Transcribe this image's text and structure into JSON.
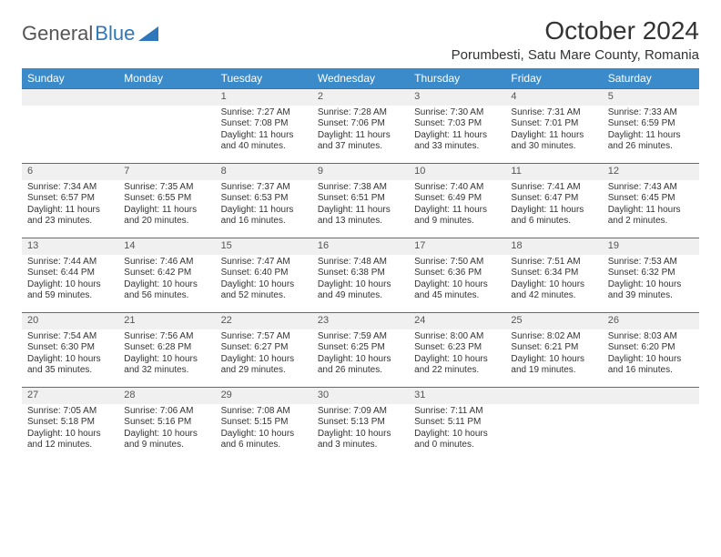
{
  "brand": {
    "part1": "General",
    "part2": "Blue"
  },
  "title": "October 2024",
  "location": "Porumbesti, Satu Mare County, Romania",
  "weekdays": [
    "Sunday",
    "Monday",
    "Tuesday",
    "Wednesday",
    "Thursday",
    "Friday",
    "Saturday"
  ],
  "colors": {
    "header_bg": "#3b8bca",
    "border": "#2f77bb",
    "daynum_bg": "#f0f0f0",
    "text": "#333333"
  },
  "leading_blanks": 2,
  "days": [
    {
      "n": "1",
      "sunrise": "Sunrise: 7:27 AM",
      "sunset": "Sunset: 7:08 PM",
      "daylight": "Daylight: 11 hours and 40 minutes."
    },
    {
      "n": "2",
      "sunrise": "Sunrise: 7:28 AM",
      "sunset": "Sunset: 7:06 PM",
      "daylight": "Daylight: 11 hours and 37 minutes."
    },
    {
      "n": "3",
      "sunrise": "Sunrise: 7:30 AM",
      "sunset": "Sunset: 7:03 PM",
      "daylight": "Daylight: 11 hours and 33 minutes."
    },
    {
      "n": "4",
      "sunrise": "Sunrise: 7:31 AM",
      "sunset": "Sunset: 7:01 PM",
      "daylight": "Daylight: 11 hours and 30 minutes."
    },
    {
      "n": "5",
      "sunrise": "Sunrise: 7:33 AM",
      "sunset": "Sunset: 6:59 PM",
      "daylight": "Daylight: 11 hours and 26 minutes."
    },
    {
      "n": "6",
      "sunrise": "Sunrise: 7:34 AM",
      "sunset": "Sunset: 6:57 PM",
      "daylight": "Daylight: 11 hours and 23 minutes."
    },
    {
      "n": "7",
      "sunrise": "Sunrise: 7:35 AM",
      "sunset": "Sunset: 6:55 PM",
      "daylight": "Daylight: 11 hours and 20 minutes."
    },
    {
      "n": "8",
      "sunrise": "Sunrise: 7:37 AM",
      "sunset": "Sunset: 6:53 PM",
      "daylight": "Daylight: 11 hours and 16 minutes."
    },
    {
      "n": "9",
      "sunrise": "Sunrise: 7:38 AM",
      "sunset": "Sunset: 6:51 PM",
      "daylight": "Daylight: 11 hours and 13 minutes."
    },
    {
      "n": "10",
      "sunrise": "Sunrise: 7:40 AM",
      "sunset": "Sunset: 6:49 PM",
      "daylight": "Daylight: 11 hours and 9 minutes."
    },
    {
      "n": "11",
      "sunrise": "Sunrise: 7:41 AM",
      "sunset": "Sunset: 6:47 PM",
      "daylight": "Daylight: 11 hours and 6 minutes."
    },
    {
      "n": "12",
      "sunrise": "Sunrise: 7:43 AM",
      "sunset": "Sunset: 6:45 PM",
      "daylight": "Daylight: 11 hours and 2 minutes."
    },
    {
      "n": "13",
      "sunrise": "Sunrise: 7:44 AM",
      "sunset": "Sunset: 6:44 PM",
      "daylight": "Daylight: 10 hours and 59 minutes."
    },
    {
      "n": "14",
      "sunrise": "Sunrise: 7:46 AM",
      "sunset": "Sunset: 6:42 PM",
      "daylight": "Daylight: 10 hours and 56 minutes."
    },
    {
      "n": "15",
      "sunrise": "Sunrise: 7:47 AM",
      "sunset": "Sunset: 6:40 PM",
      "daylight": "Daylight: 10 hours and 52 minutes."
    },
    {
      "n": "16",
      "sunrise": "Sunrise: 7:48 AM",
      "sunset": "Sunset: 6:38 PM",
      "daylight": "Daylight: 10 hours and 49 minutes."
    },
    {
      "n": "17",
      "sunrise": "Sunrise: 7:50 AM",
      "sunset": "Sunset: 6:36 PM",
      "daylight": "Daylight: 10 hours and 45 minutes."
    },
    {
      "n": "18",
      "sunrise": "Sunrise: 7:51 AM",
      "sunset": "Sunset: 6:34 PM",
      "daylight": "Daylight: 10 hours and 42 minutes."
    },
    {
      "n": "19",
      "sunrise": "Sunrise: 7:53 AM",
      "sunset": "Sunset: 6:32 PM",
      "daylight": "Daylight: 10 hours and 39 minutes."
    },
    {
      "n": "20",
      "sunrise": "Sunrise: 7:54 AM",
      "sunset": "Sunset: 6:30 PM",
      "daylight": "Daylight: 10 hours and 35 minutes."
    },
    {
      "n": "21",
      "sunrise": "Sunrise: 7:56 AM",
      "sunset": "Sunset: 6:28 PM",
      "daylight": "Daylight: 10 hours and 32 minutes."
    },
    {
      "n": "22",
      "sunrise": "Sunrise: 7:57 AM",
      "sunset": "Sunset: 6:27 PM",
      "daylight": "Daylight: 10 hours and 29 minutes."
    },
    {
      "n": "23",
      "sunrise": "Sunrise: 7:59 AM",
      "sunset": "Sunset: 6:25 PM",
      "daylight": "Daylight: 10 hours and 26 minutes."
    },
    {
      "n": "24",
      "sunrise": "Sunrise: 8:00 AM",
      "sunset": "Sunset: 6:23 PM",
      "daylight": "Daylight: 10 hours and 22 minutes."
    },
    {
      "n": "25",
      "sunrise": "Sunrise: 8:02 AM",
      "sunset": "Sunset: 6:21 PM",
      "daylight": "Daylight: 10 hours and 19 minutes."
    },
    {
      "n": "26",
      "sunrise": "Sunrise: 8:03 AM",
      "sunset": "Sunset: 6:20 PM",
      "daylight": "Daylight: 10 hours and 16 minutes."
    },
    {
      "n": "27",
      "sunrise": "Sunrise: 7:05 AM",
      "sunset": "Sunset: 5:18 PM",
      "daylight": "Daylight: 10 hours and 12 minutes."
    },
    {
      "n": "28",
      "sunrise": "Sunrise: 7:06 AM",
      "sunset": "Sunset: 5:16 PM",
      "daylight": "Daylight: 10 hours and 9 minutes."
    },
    {
      "n": "29",
      "sunrise": "Sunrise: 7:08 AM",
      "sunset": "Sunset: 5:15 PM",
      "daylight": "Daylight: 10 hours and 6 minutes."
    },
    {
      "n": "30",
      "sunrise": "Sunrise: 7:09 AM",
      "sunset": "Sunset: 5:13 PM",
      "daylight": "Daylight: 10 hours and 3 minutes."
    },
    {
      "n": "31",
      "sunrise": "Sunrise: 7:11 AM",
      "sunset": "Sunset: 5:11 PM",
      "daylight": "Daylight: 10 hours and 0 minutes."
    }
  ]
}
